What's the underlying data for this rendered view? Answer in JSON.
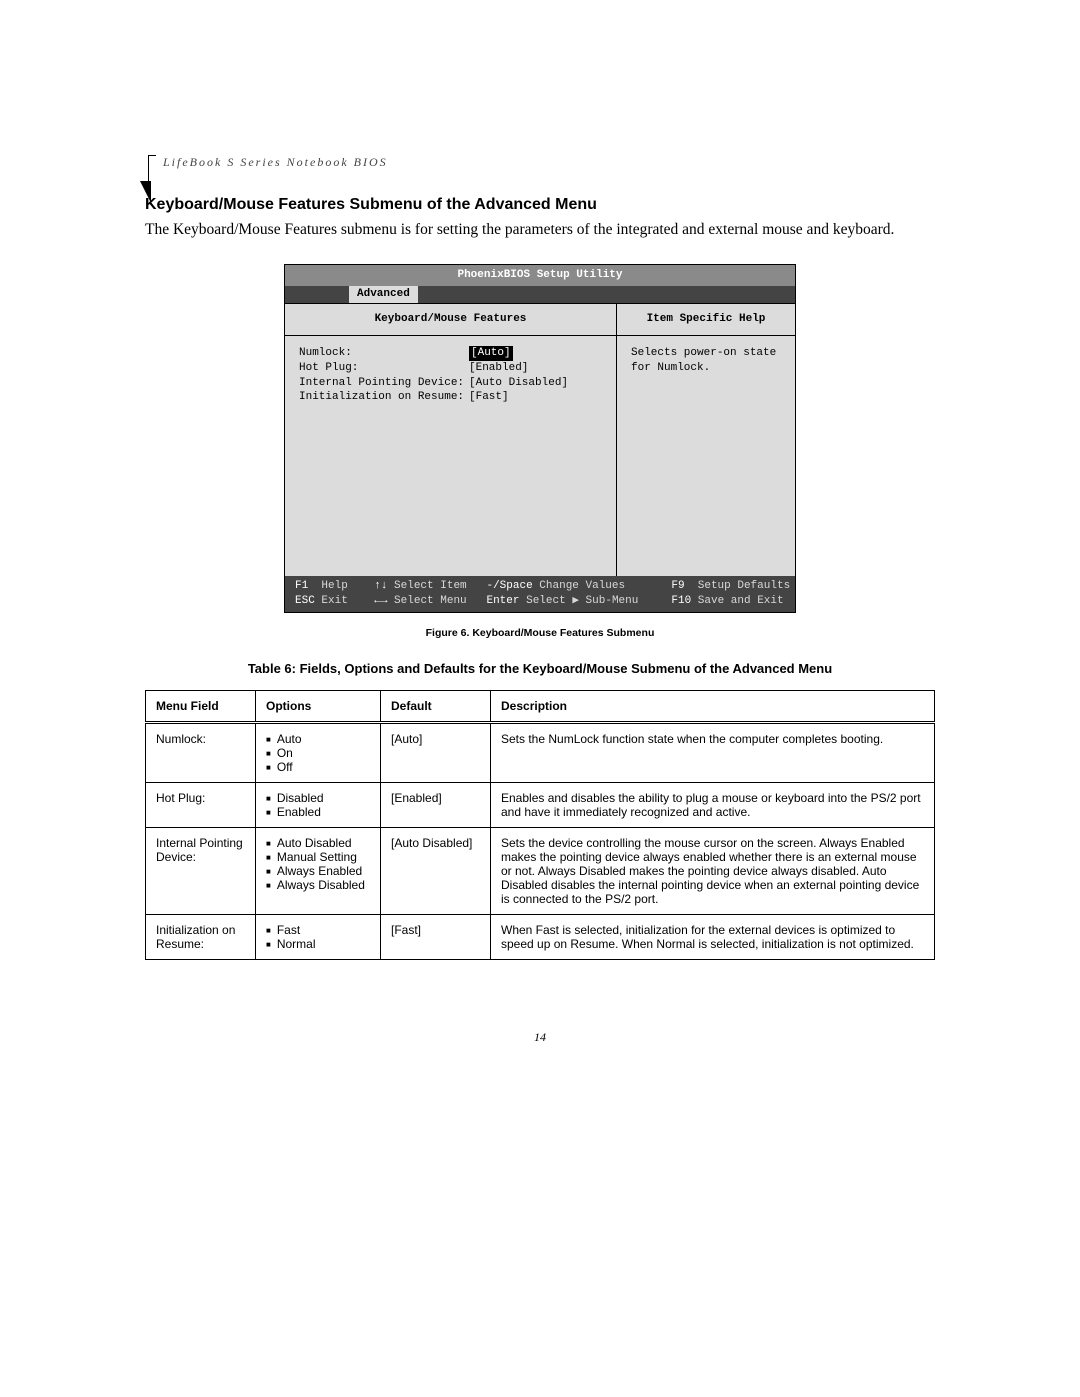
{
  "header": {
    "running": "LifeBook S Series Notebook BIOS"
  },
  "section": {
    "heading": "Keyboard/Mouse Features Submenu of the Advanced Menu",
    "paragraph": "The Keyboard/Mouse Features submenu is for setting the parameters of the integrated and external mouse and keyboard."
  },
  "bios": {
    "title": "PhoenixBIOS Setup Utility",
    "tab": "Advanced",
    "left_title": "Keyboard/Mouse Features",
    "right_title": "Item Specific Help",
    "rows": [
      {
        "label": "Numlock:",
        "value": "[Auto]",
        "selected": true
      },
      {
        "label": "Hot Plug:",
        "value": "[Enabled]",
        "selected": false
      },
      {
        "label": "Internal Pointing Device:",
        "value": "[Auto Disabled]",
        "selected": false
      },
      {
        "label": "Initialization on Resume:",
        "value": "[Fast]",
        "selected": false
      }
    ],
    "help_text": "Selects power-on state for Numlock.",
    "footer": {
      "f1": "F1",
      "help": "Help",
      "arrows_ud": "↑↓",
      "select_item": "Select Item",
      "minus_space": "-/Space",
      "change_values": "Change Values",
      "f9": "F9",
      "setup_defaults": "Setup Defaults",
      "esc": "ESC",
      "exit": "Exit",
      "arrows_lr": "←→",
      "select_menu": "Select Menu",
      "enter": "Enter",
      "select_sub": "Select ▶ Sub-Menu",
      "f10": "F10",
      "save_exit": "Save and Exit"
    }
  },
  "figure": {
    "caption": "Figure 6.   Keyboard/Mouse Features Submenu"
  },
  "table": {
    "caption": "Table 6: Fields, Options and Defaults for the Keyboard/Mouse Submenu of the Advanced Menu",
    "headers": [
      "Menu Field",
      "Options",
      "Default",
      "Description"
    ],
    "rows": [
      {
        "field": "Numlock:",
        "options": [
          "Auto",
          "On",
          "Off"
        ],
        "default": "[Auto]",
        "description": "Sets the NumLock function state when the computer completes booting."
      },
      {
        "field": "Hot Plug:",
        "options": [
          "Disabled",
          "Enabled"
        ],
        "default": "[Enabled]",
        "description": "Enables and disables the ability to plug a mouse or keyboard into the PS/2 port and have it immediately recognized and active."
      },
      {
        "field": "Internal Pointing Device:",
        "options": [
          "Auto Disabled",
          "Manual Setting",
          "Always Enabled",
          "Always Disabled"
        ],
        "default": "[Auto Disabled]",
        "description": "Sets the device controlling the mouse cursor on the screen. Always Enabled makes the pointing device always enabled whether there is an external mouse or not. Always Disabled makes the pointing device always disabled. Auto Disabled disables the internal pointing device when an external pointing device is connected to the PS/2 port."
      },
      {
        "field": "Initialization on Resume:",
        "options": [
          "Fast",
          "Normal"
        ],
        "default": "[Fast]",
        "description": "When Fast is selected, initialization for the external devices is optimized to speed up on Resume. When Normal is selected, initialization is not optimized."
      }
    ]
  },
  "page_number": "14"
}
